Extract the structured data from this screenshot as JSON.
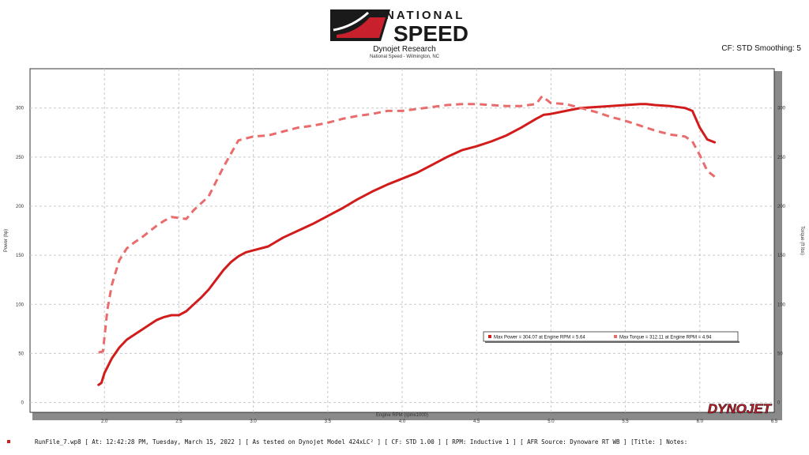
{
  "header": {
    "logo_line1": "NATIONAL",
    "logo_line2": "SPEED",
    "company": "Dynojet Research",
    "location": "National Speed - Wilmington, NC",
    "cf_info": "CF: STD Smoothing: 5"
  },
  "brand_mark": "DYNOJET",
  "footer": {
    "text": "RunFile_7.wp8 [ At: 12:42:28 PM, Tuesday, March 15, 2022 ] [ As tested on Dynojet Model 424xLC² ] [ CF: STD 1.00 ] [ RPM: Inductive 1 ] [ AFR Source: Dynoware RT WB ] [Title: ]   Notes:"
  },
  "colors": {
    "power": "#d21c1c",
    "torque": "#ea6b6b",
    "grid": "#c8c8c8",
    "frame_shadow": "#8a8a8a"
  },
  "chart_data": {
    "type": "line",
    "xlabel": "Engine RPM (rpmx1000)",
    "ylabel_left": "Power (hp)",
    "ylabel_right": "Torque (ft lbs)",
    "xlim": [
      1.5,
      6.5
    ],
    "ylim": [
      -10,
      340
    ],
    "x_ticks": [
      "2.0",
      "2.5",
      "3.0",
      "3.5",
      "4.0",
      "4.5",
      "5.0",
      "5.5",
      "6.0",
      "6.5"
    ],
    "y_ticks": [
      "0",
      "50",
      "100",
      "150",
      "200",
      "250",
      "300"
    ],
    "grid": true,
    "legend_position": "lower-right",
    "legend": [
      "Max Power = 304.07 at Engine RPM = 5.64",
      "Max Torque = 312.11 at Engine RPM = 4.94"
    ],
    "series": [
      {
        "key": "power",
        "style": "solid",
        "x": [
          1.96,
          1.98,
          2.0,
          2.05,
          2.1,
          2.15,
          2.2,
          2.25,
          2.3,
          2.35,
          2.4,
          2.45,
          2.5,
          2.55,
          2.6,
          2.65,
          2.7,
          2.75,
          2.8,
          2.85,
          2.9,
          2.95,
          3.0,
          3.1,
          3.2,
          3.3,
          3.4,
          3.5,
          3.6,
          3.7,
          3.8,
          3.9,
          4.0,
          4.1,
          4.2,
          4.3,
          4.4,
          4.5,
          4.6,
          4.7,
          4.8,
          4.9,
          4.95,
          5.0,
          5.1,
          5.2,
          5.3,
          5.4,
          5.5,
          5.6,
          5.64,
          5.7,
          5.8,
          5.9,
          5.95,
          6.0,
          6.05,
          6.1
        ],
        "values": [
          18,
          20,
          30,
          45,
          56,
          64,
          69,
          74,
          79,
          84,
          87,
          89,
          89,
          93,
          100,
          107,
          115,
          125,
          135,
          143,
          149,
          153,
          155,
          159,
          168,
          175,
          182,
          190,
          198,
          207,
          215,
          222,
          228,
          234,
          242,
          250,
          257,
          261,
          266,
          272,
          280,
          289,
          293,
          294,
          297,
          300,
          301,
          302,
          303,
          304,
          304,
          303,
          302,
          300,
          297,
          280,
          268,
          265
        ]
      },
      {
        "key": "torque",
        "style": "dashed",
        "x": [
          1.96,
          1.99,
          2.02,
          2.05,
          2.1,
          2.15,
          2.2,
          2.25,
          2.3,
          2.35,
          2.4,
          2.45,
          2.5,
          2.55,
          2.6,
          2.7,
          2.8,
          2.9,
          3.0,
          3.1,
          3.2,
          3.3,
          3.4,
          3.5,
          3.6,
          3.7,
          3.8,
          3.9,
          4.0,
          4.1,
          4.2,
          4.3,
          4.4,
          4.5,
          4.6,
          4.7,
          4.8,
          4.9,
          4.94,
          5.0,
          5.1,
          5.2,
          5.3,
          5.4,
          5.5,
          5.6,
          5.7,
          5.8,
          5.9,
          5.95,
          6.0,
          6.05,
          6.1
        ],
        "values": [
          51,
          52,
          95,
          120,
          145,
          157,
          163,
          168,
          174,
          180,
          185,
          189,
          188,
          187,
          196,
          210,
          240,
          267,
          271,
          272,
          276,
          280,
          282,
          285,
          289,
          292,
          294,
          297,
          297,
          299,
          301,
          303,
          304,
          304,
          303,
          302,
          302,
          304,
          312,
          305,
          304,
          300,
          296,
          291,
          287,
          282,
          277,
          273,
          271,
          266,
          252,
          236,
          230
        ]
      }
    ]
  }
}
